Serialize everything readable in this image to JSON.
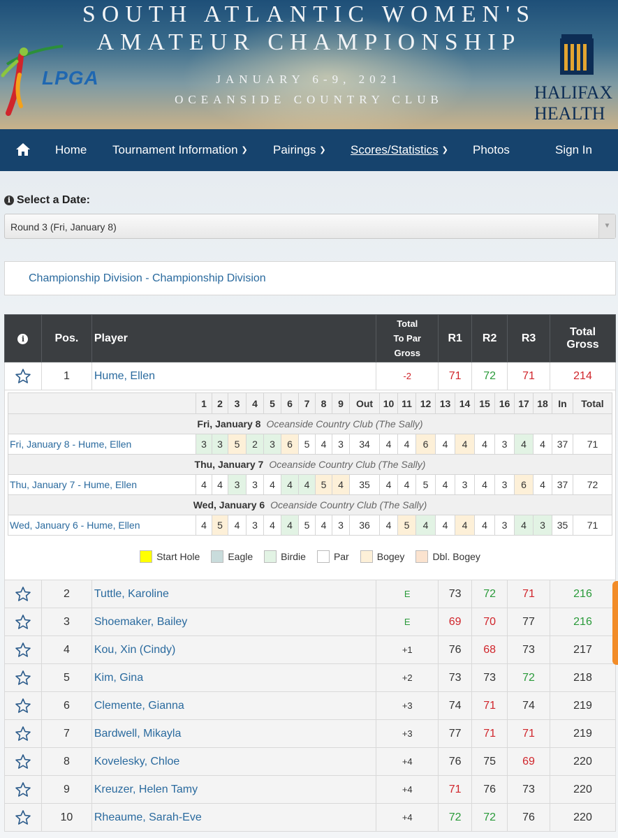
{
  "banner": {
    "title_line1": "SOUTH ATLANTIC WOMEN'S",
    "title_line2": "AMATEUR CHAMPIONSHIP",
    "dates": "JANUARY 6-9, 2021",
    "venue": "OCEANSIDE COUNTRY CLUB",
    "left_logo": "LPGA",
    "right_logo_line1": "HALIFAX",
    "right_logo_line2": "HEALTH"
  },
  "nav": {
    "home_icon": "home-icon",
    "items": [
      {
        "label": "Home"
      },
      {
        "label": "Tournament Information",
        "dropdown": true
      },
      {
        "label": "Pairings",
        "dropdown": true
      },
      {
        "label": "Scores/Statistics",
        "dropdown": true,
        "active": true
      },
      {
        "label": "Photos"
      },
      {
        "label": "Sign In"
      }
    ]
  },
  "date_select": {
    "label": "Select a Date:",
    "value": "Round 3 (Fri, January 8)"
  },
  "division": "Championship Division - Championship Division",
  "leaderboard": {
    "headers": {
      "info": "i",
      "pos": "Pos.",
      "player": "Player",
      "topar_line1": "Total",
      "topar_line2": "To Par",
      "topar_line3": "Gross",
      "r1": "R1",
      "r2": "R2",
      "r3": "R3",
      "total_line1": "Total",
      "total_line2": "Gross"
    },
    "rows": [
      {
        "pos": "1",
        "player": "Hume, Ellen",
        "topar": "-2",
        "topar_color": "red",
        "r1": "71",
        "r1c": "red",
        "r2": "72",
        "r2c": "green",
        "r3": "71",
        "r3c": "red",
        "total": "214",
        "totalc": "red"
      },
      {
        "pos": "2",
        "player": "Tuttle, Karoline",
        "topar": "E",
        "topar_color": "green",
        "r1": "73",
        "r1c": "",
        "r2": "72",
        "r2c": "green",
        "r3": "71",
        "r3c": "red",
        "total": "216",
        "totalc": "green"
      },
      {
        "pos": "3",
        "player": "Shoemaker, Bailey",
        "topar": "E",
        "topar_color": "green",
        "r1": "69",
        "r1c": "red",
        "r2": "70",
        "r2c": "red",
        "r3": "77",
        "r3c": "",
        "total": "216",
        "totalc": "green"
      },
      {
        "pos": "4",
        "player": "Kou, Xin (Cindy)",
        "topar": "+1",
        "topar_color": "",
        "r1": "76",
        "r1c": "",
        "r2": "68",
        "r2c": "red",
        "r3": "73",
        "r3c": "",
        "total": "217",
        "totalc": ""
      },
      {
        "pos": "5",
        "player": "Kim, Gina",
        "topar": "+2",
        "topar_color": "",
        "r1": "73",
        "r1c": "",
        "r2": "73",
        "r2c": "",
        "r3": "72",
        "r3c": "green",
        "total": "218",
        "totalc": ""
      },
      {
        "pos": "6",
        "player": "Clemente, Gianna",
        "topar": "+3",
        "topar_color": "",
        "r1": "74",
        "r1c": "",
        "r2": "71",
        "r2c": "red",
        "r3": "74",
        "r3c": "",
        "total": "219",
        "totalc": ""
      },
      {
        "pos": "7",
        "player": "Bardwell, Mikayla",
        "topar": "+3",
        "topar_color": "",
        "r1": "77",
        "r1c": "",
        "r2": "71",
        "r2c": "red",
        "r3": "71",
        "r3c": "red",
        "total": "219",
        "totalc": ""
      },
      {
        "pos": "8",
        "player": "Kovelesky, Chloe",
        "topar": "+4",
        "topar_color": "",
        "r1": "76",
        "r1c": "",
        "r2": "75",
        "r2c": "",
        "r3": "69",
        "r3c": "red",
        "total": "220",
        "totalc": ""
      },
      {
        "pos": "9",
        "player": "Kreuzer, Helen Tamy",
        "topar": "+4",
        "topar_color": "",
        "r1": "71",
        "r1c": "red",
        "r2": "76",
        "r2c": "",
        "r3": "73",
        "r3c": "",
        "total": "220",
        "totalc": ""
      },
      {
        "pos": "10",
        "player": "Rheaume, Sarah-Eve",
        "topar": "+4",
        "topar_color": "",
        "r1": "72",
        "r1c": "green",
        "r2": "72",
        "r2c": "green",
        "r3": "76",
        "r3c": "",
        "total": "220",
        "totalc": ""
      }
    ]
  },
  "scorecard": {
    "holes_front": [
      "1",
      "2",
      "3",
      "4",
      "5",
      "6",
      "7",
      "8",
      "9"
    ],
    "out_label": "Out",
    "holes_back": [
      "10",
      "11",
      "12",
      "13",
      "14",
      "15",
      "16",
      "17",
      "18"
    ],
    "in_label": "In",
    "total_label": "Total",
    "rounds": [
      {
        "date": "Fri, January 8",
        "course": "Oceanside Country Club (The Sally)",
        "label": "Fri, January 8 - Hume, Ellen",
        "front": [
          "3",
          "3",
          "5",
          "2",
          "3",
          "6",
          "5",
          "4",
          "3"
        ],
        "front_cls": [
          "b",
          "b",
          "bg",
          "b",
          "b",
          "bg",
          "",
          "",
          ""
        ],
        "out": "34",
        "back": [
          "4",
          "4",
          "6",
          "4",
          "4",
          "4",
          "3",
          "4",
          "4"
        ],
        "back_cls": [
          "",
          "",
          "bg",
          "",
          "bg",
          "",
          "",
          "b",
          ""
        ],
        "in": "37",
        "total": "71"
      },
      {
        "date": "Thu, January 7",
        "course": "Oceanside Country Club (The Sally)",
        "label": "Thu, January 7 - Hume, Ellen",
        "front": [
          "4",
          "4",
          "3",
          "3",
          "4",
          "4",
          "4",
          "5",
          "4"
        ],
        "front_cls": [
          "",
          "",
          "b",
          "",
          "",
          "b",
          "b",
          "bg",
          "bg"
        ],
        "out": "35",
        "back": [
          "4",
          "4",
          "5",
          "4",
          "3",
          "4",
          "3",
          "6",
          "4"
        ],
        "back_cls": [
          "",
          "",
          "",
          "",
          "",
          "",
          "",
          "bg",
          ""
        ],
        "in": "37",
        "total": "72"
      },
      {
        "date": "Wed, January 6",
        "course": "Oceanside Country Club (The Sally)",
        "label": "Wed, January 6 - Hume, Ellen",
        "front": [
          "4",
          "5",
          "4",
          "3",
          "4",
          "4",
          "5",
          "4",
          "3"
        ],
        "front_cls": [
          "",
          "bg",
          "",
          "",
          "",
          "b",
          "",
          "",
          ""
        ],
        "out": "36",
        "back": [
          "4",
          "5",
          "4",
          "4",
          "4",
          "4",
          "3",
          "4",
          "3"
        ],
        "back_cls": [
          "",
          "bg",
          "b",
          "",
          "bg",
          "",
          "",
          "b",
          "b"
        ],
        "in": "35",
        "total": "71"
      }
    ],
    "legend": [
      {
        "label": "Start Hole",
        "color": "#ffff00"
      },
      {
        "label": "Eagle",
        "color": "#c9dcdc"
      },
      {
        "label": "Birdie",
        "color": "#e2f3e4"
      },
      {
        "label": "Par",
        "color": "#ffffff"
      },
      {
        "label": "Bogey",
        "color": "#fdf0d8"
      },
      {
        "label": "Dbl. Bogey",
        "color": "#fbe3cf"
      }
    ]
  }
}
